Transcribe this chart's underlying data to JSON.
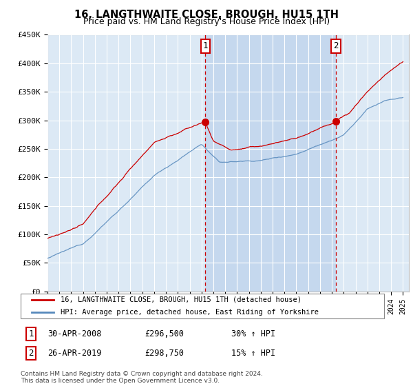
{
  "title": "16, LANGTHWAITE CLOSE, BROUGH, HU15 1TH",
  "subtitle": "Price paid vs. HM Land Registry's House Price Index (HPI)",
  "legend_label_red": "16, LANGTHWAITE CLOSE, BROUGH, HU15 1TH (detached house)",
  "legend_label_blue": "HPI: Average price, detached house, East Riding of Yorkshire",
  "annotation1_label": "1",
  "annotation1_date": "30-APR-2008",
  "annotation1_price": "£296,500",
  "annotation1_hpi": "30% ↑ HPI",
  "annotation2_label": "2",
  "annotation2_date": "26-APR-2019",
  "annotation2_price": "£298,750",
  "annotation2_hpi": "15% ↑ HPI",
  "footnote": "Contains HM Land Registry data © Crown copyright and database right 2024.\nThis data is licensed under the Open Government Licence v3.0.",
  "ylim": [
    0,
    450000
  ],
  "yticks": [
    0,
    50000,
    100000,
    150000,
    200000,
    250000,
    300000,
    350000,
    400000,
    450000
  ],
  "ytick_labels": [
    "£0",
    "£50K",
    "£100K",
    "£150K",
    "£200K",
    "£250K",
    "£300K",
    "£350K",
    "£400K",
    "£450K"
  ],
  "background_color": "#ffffff",
  "plot_bg_color": "#dce9f5",
  "highlight_bg_color": "#c5d8ee",
  "grid_color": "#ffffff",
  "red_line_color": "#cc0000",
  "blue_line_color": "#5588bb",
  "sale1_x": 2008.33,
  "sale1_y": 296500,
  "sale2_x": 2019.33,
  "sale2_y": 298750,
  "vline1_x": 2008.33,
  "vline2_x": 2019.33,
  "xlim_left": 1995,
  "xlim_right": 2025.5
}
